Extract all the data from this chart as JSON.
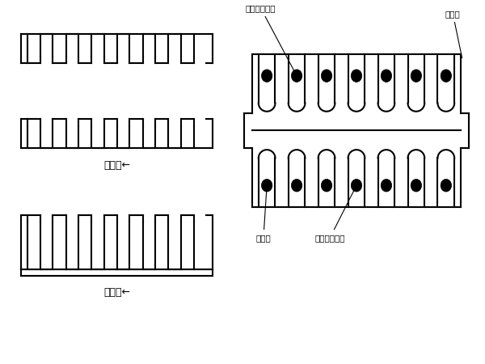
{
  "bg_color": "#ffffff",
  "line_color": "#000000",
  "lw": 1.5,
  "left_label_double": "双齿板←",
  "left_label_single": "单齿板←",
  "label_single_plate": "单梳板",
  "label_top_upper": "顶板上层钒筋",
  "label_double_plate": "双梳板",
  "label_top_lower": "顶板底层钒筋"
}
